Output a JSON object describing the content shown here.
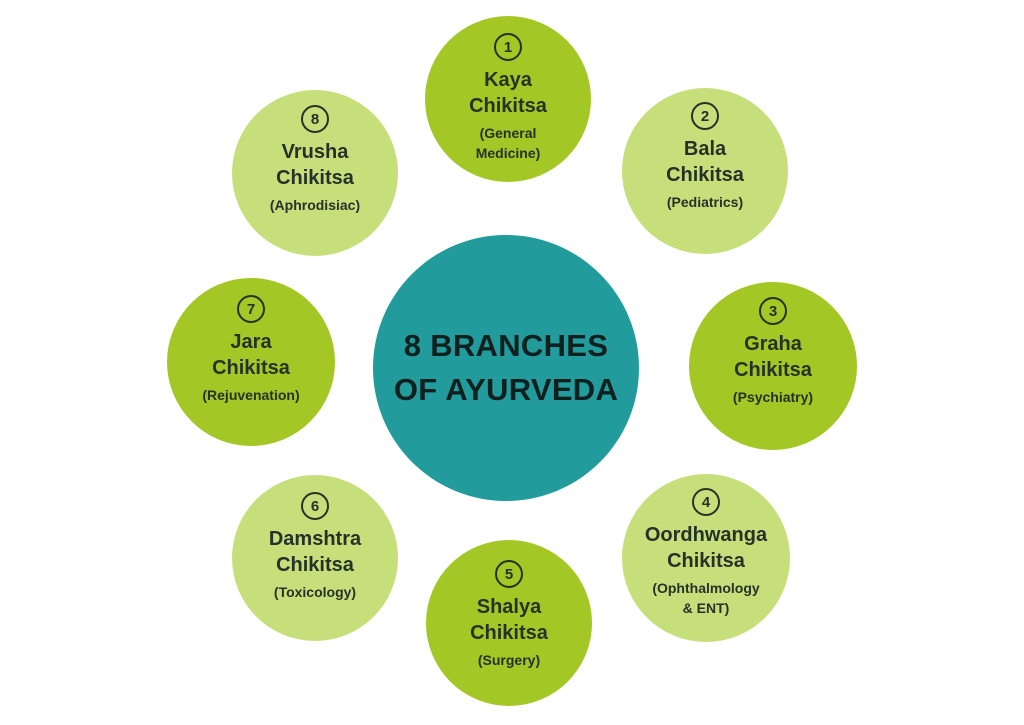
{
  "center": {
    "line1": "8 BRANCHES",
    "line2": "OF AYURVEDA",
    "color": "#219b9c"
  },
  "colors": {
    "dark_green": "#a3c724",
    "light_green": "#c7df7a",
    "text": "#25322a"
  },
  "branches": [
    {
      "number": "1",
      "name1": "Kaya",
      "name2": "Chikitsa",
      "sub1": "(General",
      "sub2": "Medicine)"
    },
    {
      "number": "2",
      "name1": "Bala",
      "name2": "Chikitsa",
      "sub1": "(Pediatrics)",
      "sub2": ""
    },
    {
      "number": "3",
      "name1": "Graha",
      "name2": "Chikitsa",
      "sub1": "(Psychiatry)",
      "sub2": ""
    },
    {
      "number": "4",
      "name1": "Oordhwanga",
      "name2": "Chikitsa",
      "sub1": "(Ophthalmology",
      "sub2": "& ENT)"
    },
    {
      "number": "5",
      "name1": "Shalya",
      "name2": "Chikitsa",
      "sub1": "(Surgery)",
      "sub2": ""
    },
    {
      "number": "6",
      "name1": "Damshtra",
      "name2": "Chikitsa",
      "sub1": "(Toxicology)",
      "sub2": ""
    },
    {
      "number": "7",
      "name1": "Jara",
      "name2": "Chikitsa",
      "sub1": "(Rejuvenation)",
      "sub2": ""
    },
    {
      "number": "8",
      "name1": "Vrusha",
      "name2": "Chikitsa",
      "sub1": "(Aphrodisiac)",
      "sub2": ""
    }
  ]
}
